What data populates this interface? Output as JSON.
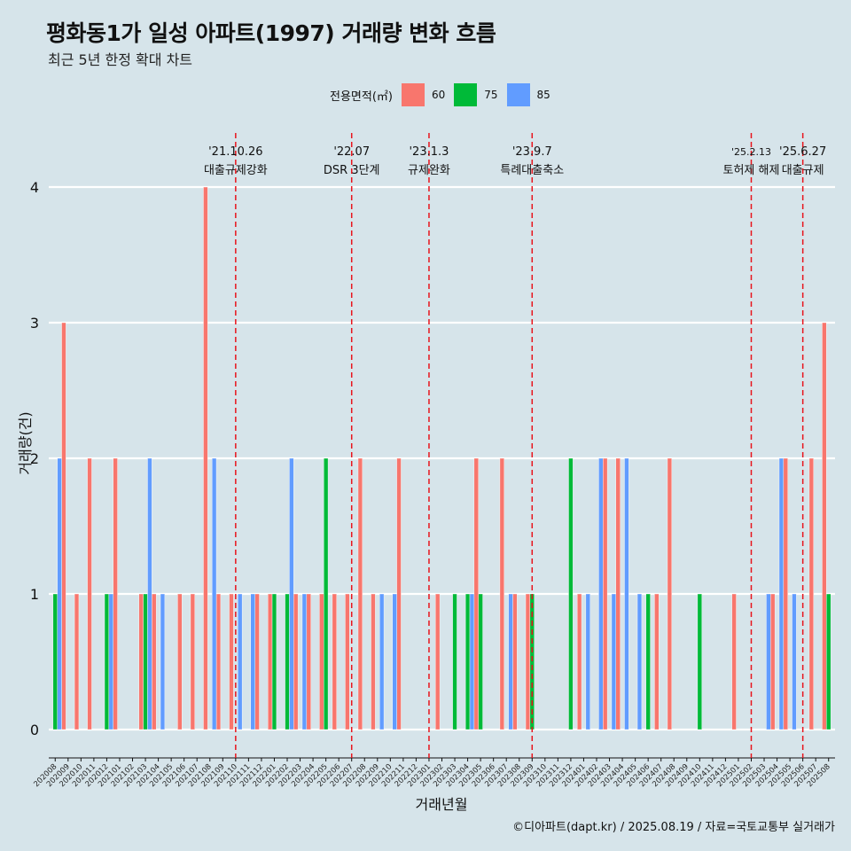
{
  "title": "평화동1가 일성 아파트(1997) 거래량 변화 흐름",
  "subtitle": "최근 5년 한정 확대 차트",
  "caption": "©디아파트(dapt.kr) / 2025.08.19 / 자료=국토교통부 실거래가",
  "legend": {
    "title": "전용면적(㎡)",
    "items": [
      {
        "label": "60",
        "color": "#f8766d"
      },
      {
        "label": "75",
        "color": "#00ba38"
      },
      {
        "label": "85",
        "color": "#619cff"
      }
    ]
  },
  "chart_data": {
    "type": "bar",
    "xlabel": "거래년월",
    "ylabel": "거래량(건)",
    "ylim": [
      0,
      4
    ],
    "yticks": [
      0,
      1,
      2,
      3,
      4
    ],
    "categories": [
      "202008",
      "202009",
      "202010",
      "202011",
      "202012",
      "202101",
      "202102",
      "202103",
      "202104",
      "202105",
      "202106",
      "202107",
      "202108",
      "202109",
      "202110",
      "202111",
      "202112",
      "202201",
      "202202",
      "202203",
      "202204",
      "202205",
      "202206",
      "202207",
      "202208",
      "202209",
      "202210",
      "202211",
      "202212",
      "202301",
      "202302",
      "202303",
      "202304",
      "202305",
      "202306",
      "202307",
      "202308",
      "202309",
      "202310",
      "202311",
      "202312",
      "202401",
      "202402",
      "202403",
      "202404",
      "202405",
      "202406",
      "202407",
      "202408",
      "202409",
      "202410",
      "202411",
      "202412",
      "202501",
      "202502",
      "202503",
      "202504",
      "202505",
      "202506",
      "202507",
      "202508"
    ],
    "series": [
      {
        "name": "60",
        "color": "#f8766d",
        "values": [
          0,
          3,
          1,
          2,
          0,
          2,
          0,
          1,
          1,
          0,
          1,
          1,
          4,
          1,
          1,
          0,
          1,
          1,
          0,
          1,
          1,
          1,
          1,
          1,
          2,
          1,
          0,
          2,
          0,
          0,
          1,
          0,
          0,
          2,
          0,
          2,
          1,
          1,
          0,
          0,
          0,
          1,
          0,
          2,
          2,
          0,
          0,
          1,
          2,
          0,
          0,
          0,
          0,
          1,
          0,
          0,
          1,
          2,
          0,
          2,
          3
        ]
      },
      {
        "name": "75",
        "color": "#00ba38",
        "values": [
          1,
          0,
          0,
          0,
          1,
          0,
          0,
          1,
          0,
          0,
          0,
          0,
          0,
          0,
          0,
          0,
          0,
          1,
          1,
          0,
          0,
          2,
          0,
          0,
          0,
          0,
          0,
          0,
          0,
          0,
          0,
          1,
          1,
          1,
          0,
          0,
          0,
          1,
          0,
          0,
          2,
          0,
          0,
          0,
          0,
          0,
          1,
          0,
          0,
          0,
          1,
          0,
          0,
          0,
          0,
          0,
          0,
          0,
          0,
          0,
          1
        ]
      },
      {
        "name": "85",
        "color": "#619cff",
        "values": [
          2,
          0,
          0,
          0,
          1,
          0,
          0,
          2,
          1,
          0,
          0,
          0,
          2,
          0,
          1,
          1,
          0,
          0,
          2,
          1,
          0,
          0,
          0,
          0,
          0,
          1,
          1,
          0,
          0,
          0,
          0,
          0,
          1,
          0,
          0,
          1,
          0,
          0,
          0,
          0,
          0,
          1,
          2,
          1,
          2,
          1,
          0,
          0,
          0,
          0,
          0,
          0,
          0,
          0,
          0,
          1,
          2,
          1,
          0,
          0,
          0
        ]
      }
    ],
    "events": [
      {
        "date": "'21.10.26",
        "label": "대출규제강화",
        "category": "202110"
      },
      {
        "date": "'22.07",
        "label": "DSR 3단계",
        "category": "202207"
      },
      {
        "date": "'23.1.3",
        "label": "규제완화",
        "category": "202301"
      },
      {
        "date": "'23.9.7",
        "label": "특례대출축소",
        "category": "202309"
      },
      {
        "date": "'25.2.13",
        "label": "토허제 해제",
        "category": "202502"
      },
      {
        "date": "'25.6.27",
        "label": "대출규제",
        "category": "202506"
      }
    ],
    "grid": true,
    "legend_position": "top"
  }
}
